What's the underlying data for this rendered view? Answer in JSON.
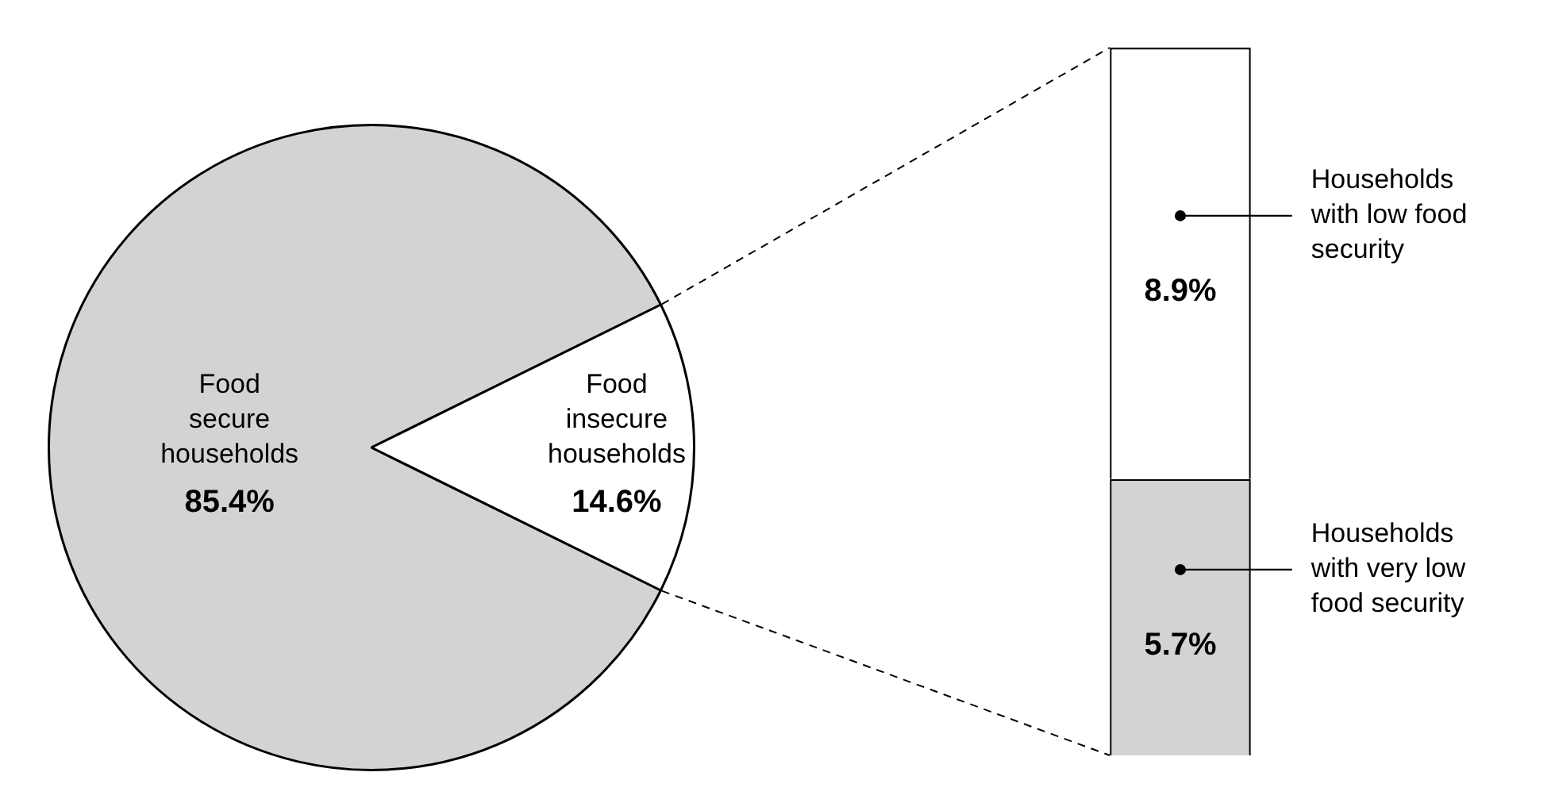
{
  "chart_data": [
    {
      "type": "pie",
      "categories": [
        "Food secure households",
        "Food insecure households"
      ],
      "values": [
        85.4,
        14.6
      ],
      "colors": [
        "#d3d3d3",
        "#ffffff"
      ],
      "value_labels": [
        "85.4%",
        "14.6%"
      ],
      "legend": false
    },
    {
      "type": "bar",
      "stacked": true,
      "categories": [
        null
      ],
      "series": [
        {
          "name": "Households with very low food security",
          "color": "#d3d3d3",
          "values": [
            5.7
          ],
          "value_labels": [
            "5.7%"
          ]
        },
        {
          "name": "Households with low food security",
          "color": "#ffffff",
          "values": [
            8.9
          ],
          "value_labels": [
            "8.9%"
          ]
        }
      ],
      "legend": false
    }
  ]
}
